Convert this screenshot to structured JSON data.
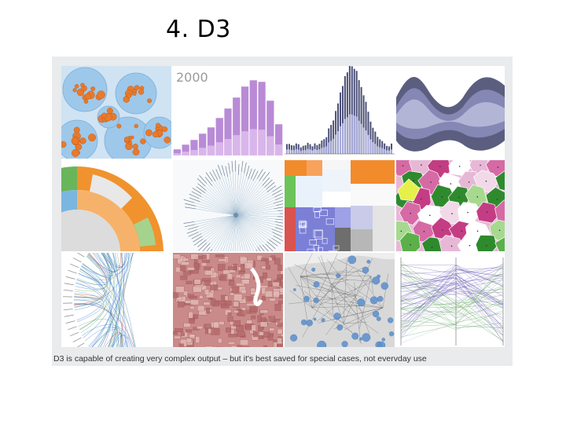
{
  "slide": {
    "title": "4. D3",
    "caption": "D3 is capable of creating very complex output – but it's best saved for special cases, not evervday use"
  },
  "gallery": {
    "histogram_year_label": "2000",
    "tiles": [
      "bubble-pack",
      "histogram",
      "stacked-bar",
      "streamgraph",
      "sunburst",
      "radial-tree",
      "treemap",
      "voronoi",
      "hierarchical-edge-bundling",
      "choropleth-map",
      "flight-map",
      "parallel-coordinates"
    ]
  },
  "colors": {
    "bubble_orange": "#e87a2b",
    "bubble_blue": "#9ec8ea",
    "histogram_purple": "#b98bd6",
    "stream_slate": "#6f7196",
    "sunburst_orange": "#f0932e",
    "sunburst_green": "#4fa83d",
    "treemap_orange": "#f28b2c",
    "treemap_blue": "#7b7fd6",
    "voronoi_pink": "#c43d84",
    "voronoi_green": "#5bb04a",
    "bundle_blue": "#3a7cc9",
    "map_red": "#a9484b",
    "parallel_purple": "#6b5bb5",
    "parallel_green": "#56a84d"
  }
}
